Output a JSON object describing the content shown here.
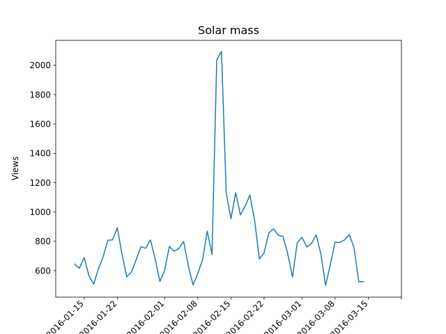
{
  "chart_data": {
    "type": "line",
    "title": "Solar mass",
    "xlabel": "",
    "ylabel": "Views",
    "ylim": [
      420,
      2170
    ],
    "xlim": [
      "2016-01-09",
      "2016-03-22"
    ],
    "yticks": [
      600,
      800,
      1000,
      1200,
      1400,
      1600,
      1800,
      2000
    ],
    "xticks": [
      "2016-01-15",
      "2016-01-22",
      "2016-02-01",
      "2016-02-08",
      "2016-02-15",
      "2016-02-22",
      "2016-03-01",
      "2016-03-08",
      "2016-03-15",
      "2016-03-22"
    ],
    "xtick_labels": [
      "2016-01-15",
      "2016-01-22",
      "2016-02-01",
      "2016-02-08",
      "2016-02-15",
      "2016-02-22",
      "2016-03-01",
      "2016-03-08",
      "2016-03-15",
      ""
    ],
    "grid": false,
    "series": [
      {
        "color": "#1f77b4",
        "x": [
          "2016-01-13",
          "2016-01-14",
          "2016-01-15",
          "2016-01-16",
          "2016-01-17",
          "2016-01-18",
          "2016-01-19",
          "2016-01-20",
          "2016-01-21",
          "2016-01-22",
          "2016-01-23",
          "2016-01-24",
          "2016-01-25",
          "2016-01-26",
          "2016-01-27",
          "2016-01-28",
          "2016-01-29",
          "2016-01-30",
          "2016-01-31",
          "2016-02-01",
          "2016-02-02",
          "2016-02-03",
          "2016-02-04",
          "2016-02-05",
          "2016-02-06",
          "2016-02-07",
          "2016-02-08",
          "2016-02-09",
          "2016-02-10",
          "2016-02-11",
          "2016-02-12",
          "2016-02-13",
          "2016-02-14",
          "2016-02-15",
          "2016-02-16",
          "2016-02-17",
          "2016-02-18",
          "2016-02-19",
          "2016-02-20",
          "2016-02-21",
          "2016-02-22",
          "2016-02-23",
          "2016-02-24",
          "2016-02-25",
          "2016-02-26",
          "2016-02-27",
          "2016-02-28",
          "2016-02-29",
          "2016-03-01",
          "2016-03-02",
          "2016-03-03",
          "2016-03-04",
          "2016-03-05",
          "2016-03-06",
          "2016-03-07",
          "2016-03-08",
          "2016-03-09",
          "2016-03-10",
          "2016-03-11",
          "2016-03-12",
          "2016-03-13",
          "2016-03-14"
        ],
        "y": [
          645,
          617,
          690,
          566,
          508,
          612,
          695,
          808,
          810,
          893,
          711,
          558,
          592,
          676,
          764,
          753,
          810,
          680,
          526,
          603,
          765,
          733,
          751,
          800,
          633,
          503,
          582,
          674,
          870,
          710,
          2036,
          2095,
          1130,
          955,
          1132,
          980,
          1040,
          1115,
          944,
          680,
          722,
          858,
          886,
          842,
          833,
          715,
          556,
          790,
          828,
          762,
          785,
          844,
          712,
          500,
          642,
          794,
          793,
          810,
          847,
          756,
          525,
          525
        ]
      }
    ]
  }
}
